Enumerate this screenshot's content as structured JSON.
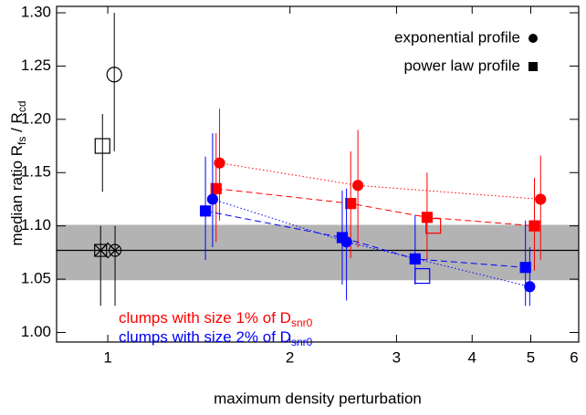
{
  "chart_data": {
    "type": "scatter",
    "x_label": "maximum density perturbation",
    "y_label": [
      "median ratio R",
      "fs",
      " / R",
      "cd"
    ],
    "x_log": true,
    "xlim": [
      0.823,
      6
    ],
    "xticks": [
      1,
      2,
      3,
      4,
      5,
      6
    ],
    "ylim": [
      0.991,
      1.306
    ],
    "yticks": [
      {
        "value": 1.0,
        "label": "1.00"
      },
      {
        "value": 1.05,
        "label": "1.05"
      },
      {
        "value": 1.1,
        "label": "1.10"
      },
      {
        "value": 1.15,
        "label": "1.15"
      },
      {
        "value": 1.2,
        "label": "1.20"
      },
      {
        "value": 1.25,
        "label": "1.25"
      },
      {
        "value": 1.3,
        "label": "1.30"
      }
    ],
    "band": {
      "range": [
        1.049,
        1.101
      ],
      "color": "#b3b3b3"
    },
    "hline": 1.077,
    "legend": [
      {
        "label": "exponential profile",
        "marker": "circle"
      },
      {
        "label": "power law profile",
        "marker": "square"
      }
    ],
    "annotations": [
      {
        "text": [
          "clumps with size 1% of D",
          "snr0"
        ],
        "color": "#ff0000"
      },
      {
        "text": [
          "clumps with size 2% of D",
          "snr0"
        ],
        "color": "#0000ff"
      }
    ],
    "series": [
      {
        "color": "#ff0000",
        "marker": "circle",
        "filled": true,
        "line": "dotted",
        "x": [
          1.53,
          2.59,
          5.19
        ],
        "values": [
          1.159,
          1.138,
          1.125
        ],
        "y_low": [
          1.105,
          1.08,
          1.068
        ],
        "y_high": [
          1.21,
          1.19,
          1.166
        ]
      },
      {
        "color": "#ff0000",
        "marker": "square",
        "filled": true,
        "line": "dashed",
        "x": [
          1.51,
          2.52,
          3.37,
          5.07
        ],
        "values": [
          1.135,
          1.121,
          1.108,
          1.1
        ],
        "y_low": [
          1.085,
          1.07,
          1.068,
          1.058
        ],
        "y_high": [
          1.187,
          1.17,
          1.15,
          1.145
        ]
      },
      {
        "color": "#0000ff",
        "marker": "circle",
        "filled": true,
        "line": "dotted",
        "x": [
          1.49,
          2.48,
          4.98
        ],
        "values": [
          1.125,
          1.085,
          1.043
        ],
        "y_low": [
          1.08,
          1.03,
          1.025
        ],
        "y_high": [
          1.187,
          1.135,
          1.08
        ]
      },
      {
        "color": "#0000ff",
        "marker": "square",
        "filled": true,
        "line": "dashed",
        "x": [
          1.45,
          2.44,
          3.22,
          4.9
        ],
        "values": [
          1.114,
          1.089,
          1.069,
          1.061
        ],
        "y_low": [
          1.068,
          1.045,
          1.045,
          1.025
        ],
        "y_high": [
          1.165,
          1.133,
          1.11,
          1.105
        ]
      },
      {
        "color": "#ff0000",
        "marker": "square",
        "filled": false,
        "x": [
          3.45
        ],
        "values": [
          1.1
        ]
      },
      {
        "color": "#0000ff",
        "marker": "square",
        "filled": false,
        "x": [
          3.31
        ],
        "values": [
          1.053
        ]
      },
      {
        "color": "#000000",
        "marker": "circle",
        "filled": false,
        "x": [
          1.025
        ],
        "values": [
          1.242
        ],
        "y_low": [
          1.17
        ],
        "y_high": [
          1.3
        ]
      },
      {
        "color": "#000000",
        "marker": "square",
        "filled": false,
        "x": [
          0.98
        ],
        "values": [
          1.175
        ],
        "y_low": [
          1.132
        ],
        "y_high": [
          1.205
        ]
      },
      {
        "color": "#000000",
        "marker": "square-x",
        "filled": false,
        "x": [
          0.973
        ],
        "values": [
          1.077
        ],
        "y_low": [
          1.025
        ],
        "y_high": [
          1.1
        ]
      },
      {
        "color": "#000000",
        "marker": "diamond",
        "filled": false,
        "x": [
          1.0
        ],
        "values": [
          1.077
        ]
      },
      {
        "color": "#000000",
        "marker": "circle-x",
        "filled": false,
        "x": [
          1.028
        ],
        "values": [
          1.077
        ],
        "y_low": [
          1.025
        ],
        "y_high": [
          1.1
        ]
      }
    ]
  }
}
